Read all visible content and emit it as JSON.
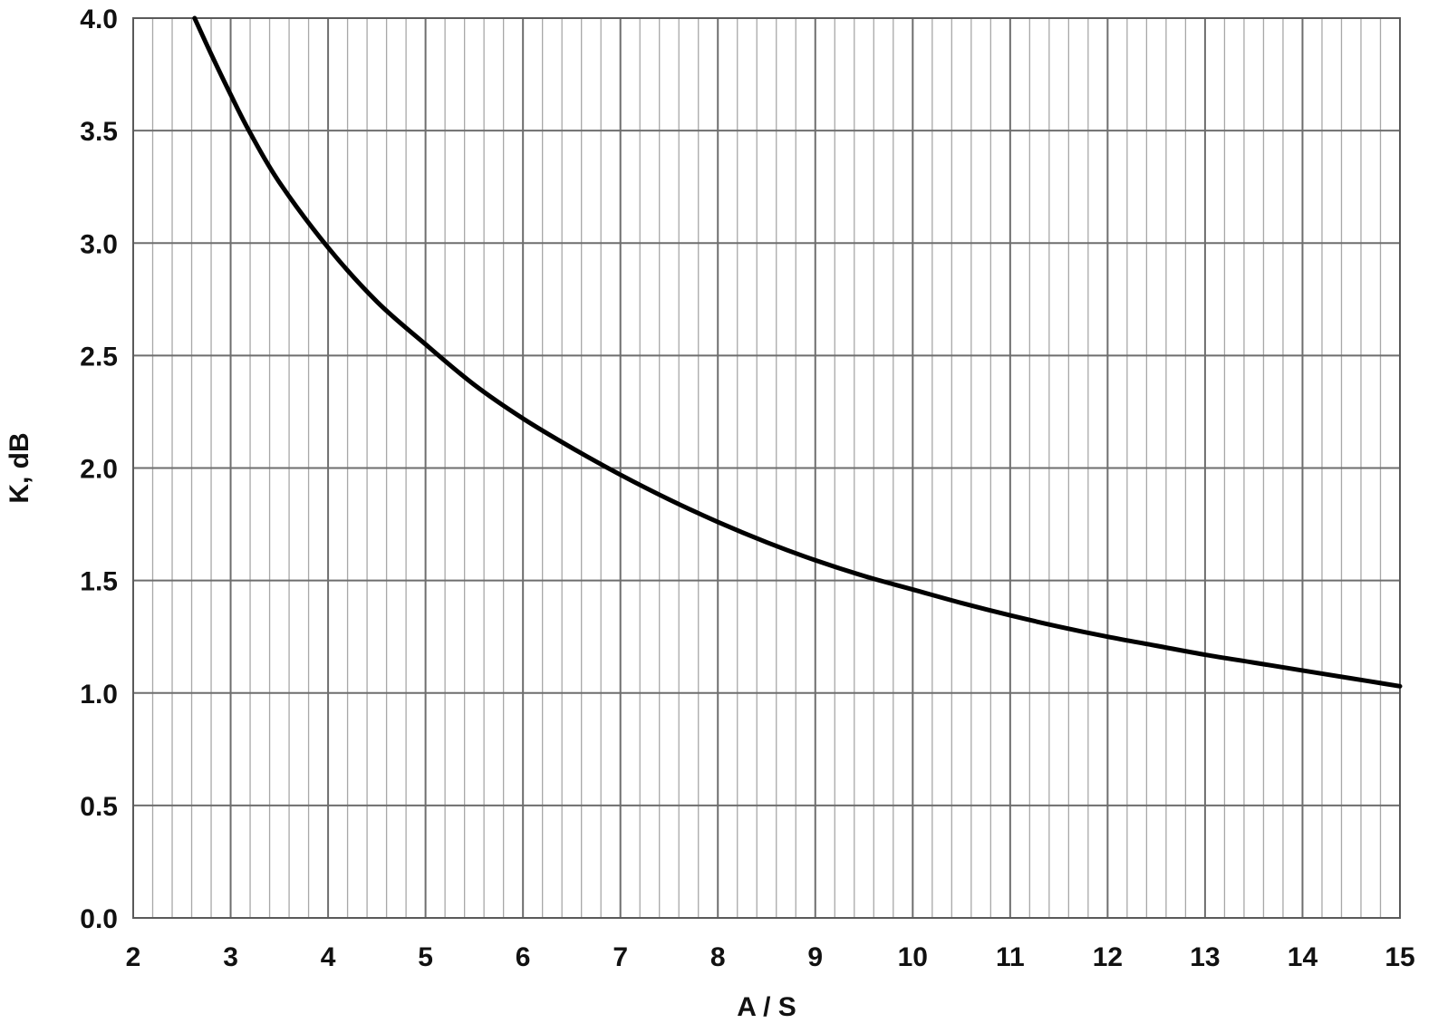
{
  "chart_data": {
    "type": "line",
    "title": "",
    "xlabel": "A / S",
    "ylabel": "K, dB",
    "xlim": [
      2,
      15
    ],
    "ylim": [
      0.0,
      4.0
    ],
    "x_ticks": [
      "2",
      "3",
      "4",
      "5",
      "6",
      "7",
      "8",
      "9",
      "10",
      "11",
      "12",
      "13",
      "14",
      "15"
    ],
    "y_ticks": [
      "0.0",
      "0.5",
      "1.0",
      "1.5",
      "2.0",
      "2.5",
      "3.0",
      "3.5",
      "4.0"
    ],
    "x_minor_step": 0.2,
    "grid": true,
    "series": [
      {
        "line_color": "#000000",
        "x": [
          2.63,
          2.8,
          3.0,
          3.2,
          3.5,
          4.0,
          4.5,
          5.0,
          5.5,
          6.0,
          6.5,
          7.0,
          7.5,
          8.0,
          8.5,
          9.0,
          9.5,
          10.0,
          10.5,
          11.0,
          11.5,
          12.0,
          12.5,
          13.0,
          13.5,
          14.0,
          14.5,
          15.0
        ],
        "y": [
          4.0,
          3.84,
          3.66,
          3.49,
          3.27,
          2.98,
          2.74,
          2.55,
          2.37,
          2.22,
          2.09,
          1.97,
          1.86,
          1.76,
          1.67,
          1.59,
          1.52,
          1.46,
          1.4,
          1.345,
          1.295,
          1.25,
          1.21,
          1.17,
          1.135,
          1.1,
          1.065,
          1.03
        ]
      }
    ]
  }
}
